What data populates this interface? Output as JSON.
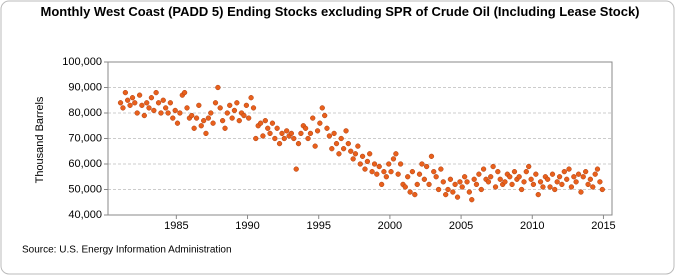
{
  "chart_data": {
    "type": "scatter",
    "title": "Monthly West Coast (PADD 5) Ending Stocks excluding SPR of Crude Oil (Including Lease Stock)",
    "y_label": "Thousand Barrels",
    "source": "Source: U.S. Energy Information Administration",
    "color": "#e8601c",
    "grid": true,
    "xlim": [
      1980.2,
      2015.6
    ],
    "xticks": [
      1985,
      1990,
      1995,
      2000,
      2005,
      2010,
      2015
    ],
    "ylim": [
      40000,
      100000
    ],
    "yticks": [
      {
        "value": 40000,
        "label": "40,000"
      },
      {
        "value": 50000,
        "label": "50,000"
      },
      {
        "value": 60000,
        "label": "60,000"
      },
      {
        "value": 70000,
        "label": "70,000"
      },
      {
        "value": 80000,
        "label": "80,000"
      },
      {
        "value": 90000,
        "label": "90,000"
      },
      {
        "value": 100000,
        "label": "100,000"
      }
    ],
    "x": [
      1981.08,
      1981.25,
      1981.42,
      1981.58,
      1981.75,
      1981.92,
      1982.08,
      1982.25,
      1982.42,
      1982.58,
      1982.75,
      1982.92,
      1983.08,
      1983.25,
      1983.42,
      1983.58,
      1983.75,
      1983.92,
      1984.08,
      1984.25,
      1984.42,
      1984.58,
      1984.75,
      1984.92,
      1985.08,
      1985.25,
      1985.42,
      1985.58,
      1985.75,
      1985.92,
      1986.08,
      1986.25,
      1986.42,
      1986.58,
      1986.75,
      1986.92,
      1987.08,
      1987.25,
      1987.42,
      1987.58,
      1987.75,
      1987.92,
      1988.08,
      1988.25,
      1988.42,
      1988.58,
      1988.75,
      1988.92,
      1989.08,
      1989.25,
      1989.42,
      1989.58,
      1989.75,
      1989.92,
      1990.08,
      1990.25,
      1990.42,
      1990.58,
      1990.75,
      1990.92,
      1991.08,
      1991.25,
      1991.42,
      1991.58,
      1991.75,
      1991.92,
      1992.08,
      1992.25,
      1992.42,
      1992.58,
      1992.75,
      1992.92,
      1993.08,
      1993.25,
      1993.42,
      1993.58,
      1993.75,
      1993.92,
      1994.08,
      1994.25,
      1994.42,
      1994.58,
      1994.75,
      1994.92,
      1995.08,
      1995.25,
      1995.42,
      1995.58,
      1995.75,
      1995.92,
      1996.08,
      1996.25,
      1996.42,
      1996.58,
      1996.75,
      1996.92,
      1997.08,
      1997.25,
      1997.42,
      1997.58,
      1997.75,
      1997.92,
      1998.08,
      1998.25,
      1998.42,
      1998.58,
      1998.75,
      1998.92,
      1999.08,
      1999.25,
      1999.42,
      1999.58,
      1999.75,
      1999.92,
      2000.08,
      2000.25,
      2000.42,
      2000.58,
      2000.75,
      2000.92,
      2001.08,
      2001.25,
      2001.42,
      2001.58,
      2001.75,
      2001.92,
      2002.08,
      2002.25,
      2002.42,
      2002.58,
      2002.75,
      2002.92,
      2003.08,
      2003.25,
      2003.42,
      2003.58,
      2003.75,
      2003.92,
      2004.08,
      2004.25,
      2004.42,
      2004.58,
      2004.75,
      2004.92,
      2005.08,
      2005.25,
      2005.42,
      2005.58,
      2005.75,
      2005.92,
      2006.08,
      2006.25,
      2006.42,
      2006.58,
      2006.75,
      2006.92,
      2007.08,
      2007.25,
      2007.42,
      2007.58,
      2007.75,
      2007.92,
      2008.08,
      2008.25,
      2008.42,
      2008.58,
      2008.75,
      2008.92,
      2009.08,
      2009.25,
      2009.42,
      2009.58,
      2009.75,
      2009.92,
      2010.08,
      2010.25,
      2010.42,
      2010.58,
      2010.75,
      2010.92,
      2011.08,
      2011.25,
      2011.42,
      2011.58,
      2011.75,
      2011.92,
      2012.08,
      2012.25,
      2012.42,
      2012.58,
      2012.75,
      2012.92,
      2013.08,
      2013.25,
      2013.42,
      2013.58,
      2013.75,
      2013.92,
      2014.08,
      2014.25,
      2014.42,
      2014.58,
      2014.75,
      2014.92
    ],
    "values": [
      84000,
      82000,
      88000,
      85000,
      83000,
      86000,
      84000,
      80000,
      87000,
      83000,
      79000,
      84000,
      82000,
      86000,
      81000,
      88000,
      84000,
      80000,
      85000,
      82000,
      80000,
      84000,
      78000,
      81000,
      76000,
      80000,
      87000,
      88000,
      82000,
      78000,
      79000,
      74000,
      78000,
      83000,
      75000,
      77000,
      72000,
      78000,
      80000,
      76000,
      84000,
      90000,
      82000,
      77000,
      74000,
      80000,
      83000,
      78000,
      81000,
      84000,
      77000,
      80000,
      79000,
      83000,
      78000,
      86000,
      82000,
      70000,
      75000,
      76000,
      71000,
      77000,
      74000,
      72000,
      76000,
      70000,
      74000,
      68000,
      72000,
      70000,
      73000,
      71000,
      72000,
      70000,
      58000,
      68000,
      72000,
      75000,
      74000,
      70000,
      72000,
      78000,
      67000,
      73000,
      76000,
      82000,
      79000,
      74000,
      71000,
      66000,
      72000,
      68000,
      64000,
      70000,
      66000,
      73000,
      68000,
      65000,
      62000,
      64000,
      67000,
      60000,
      63000,
      58000,
      61000,
      64000,
      57000,
      60000,
      56000,
      59000,
      52000,
      57000,
      55000,
      60000,
      57000,
      62000,
      64000,
      56000,
      60000,
      52000,
      51000,
      55000,
      49000,
      57000,
      48000,
      52000,
      56000,
      60000,
      54000,
      59000,
      52000,
      63000,
      57000,
      55000,
      50000,
      58000,
      53000,
      48000,
      50000,
      54000,
      49000,
      52000,
      47000,
      53000,
      51000,
      55000,
      53000,
      49000,
      46000,
      54000,
      52000,
      56000,
      50000,
      58000,
      54000,
      53000,
      55000,
      59000,
      51000,
      57000,
      54000,
      52000,
      53000,
      56000,
      55000,
      52000,
      57000,
      54000,
      55000,
      50000,
      53000,
      57000,
      59000,
      54000,
      52000,
      56000,
      48000,
      53000,
      51000,
      55000,
      54000,
      51000,
      56000,
      50000,
      53000,
      55000,
      52000,
      57000,
      54000,
      58000,
      51000,
      55000,
      53000,
      56000,
      49000,
      55000,
      57000,
      52000,
      54000,
      51000,
      56000,
      58000,
      53000,
      50000
    ]
  }
}
